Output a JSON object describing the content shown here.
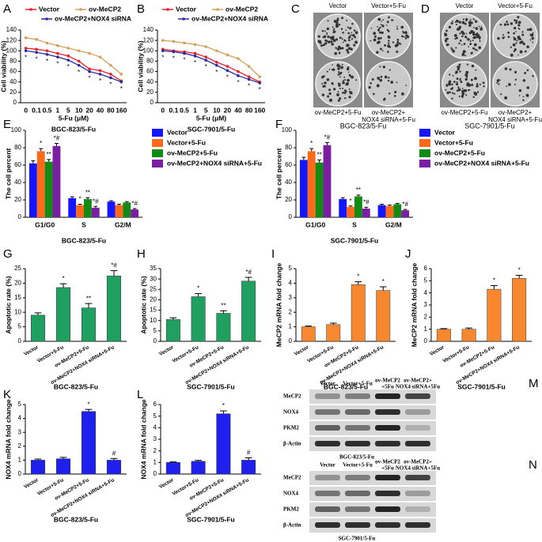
{
  "chart_data": [
    {
      "type": "line",
      "panel": "A",
      "subtitle": "BGC-823/5-Fu",
      "x_label": "5-Fu (μM)",
      "y_label": "Cell viability (%)",
      "categories": [
        "0",
        "0.1",
        "0.5",
        "1",
        "5",
        "10",
        "20",
        "40",
        "80",
        "160"
      ],
      "ylim": [
        0,
        140
      ],
      "yticks": [
        0,
        20,
        40,
        60,
        80,
        100,
        120,
        140
      ],
      "series": [
        {
          "name": "Vector",
          "color": "#e8202a",
          "values": [
            105,
            103,
            100,
            95,
            90,
            80,
            65,
            62,
            55,
            42
          ]
        },
        {
          "name": "ov-MeCP2",
          "color": "#d4a05a",
          "values": [
            125,
            122,
            115,
            110,
            105,
            100,
            95,
            88,
            72,
            55
          ]
        },
        {
          "name": "ov-MeCP2+NOX4 siRNA",
          "color": "#2a2aa0",
          "values": [
            100,
            97,
            93,
            88,
            82,
            72,
            60,
            55,
            48,
            40
          ]
        }
      ],
      "significance": [
        "*",
        "*",
        "*",
        "*",
        "*",
        "*",
        "*",
        "*",
        "*",
        "*"
      ]
    },
    {
      "type": "line",
      "panel": "B",
      "subtitle": "SGC-7901/5-Fu",
      "x_label": "5-Fu (μM)",
      "y_label": "Cell viability (%)",
      "categories": [
        "0",
        "0.1",
        "0.5",
        "1",
        "5",
        "10",
        "20",
        "40",
        "80",
        "160"
      ],
      "ylim": [
        0,
        140
      ],
      "yticks": [
        0,
        20,
        40,
        60,
        80,
        100,
        120,
        140
      ],
      "series": [
        {
          "name": "Vector",
          "color": "#e8202a",
          "values": [
            103,
            100,
            98,
            95,
            88,
            78,
            70,
            60,
            50,
            40
          ]
        },
        {
          "name": "ov-MeCP2",
          "color": "#d4a05a",
          "values": [
            120,
            118,
            115,
            112,
            108,
            100,
            92,
            85,
            70,
            50
          ]
        },
        {
          "name": "ov-MeCP2+NOX4 siRNA",
          "color": "#2a2aa0",
          "values": [
            100,
            98,
            95,
            90,
            82,
            72,
            62,
            52,
            45,
            38
          ]
        }
      ],
      "significance": [
        "*",
        "*",
        "*",
        "*",
        "*",
        "*",
        "*",
        "*",
        "*",
        "*"
      ]
    },
    {
      "type": "bar",
      "panel": "E",
      "subtitle": "BGC-823/5-Fu",
      "y_label": "The cell percent",
      "categories": [
        "G1/G0",
        "S",
        "G2/M"
      ],
      "ylim": [
        0,
        100
      ],
      "yticks": [
        0,
        20,
        40,
        60,
        80,
        100
      ],
      "series": [
        {
          "name": "Vector",
          "color": "#1515ff",
          "values": [
            62,
            22,
            18
          ],
          "errors": [
            3,
            1.5,
            1
          ]
        },
        {
          "name": "Vector+5-Fu",
          "color": "#ff6a1a",
          "values": [
            76,
            14,
            14
          ],
          "errors": [
            3,
            1,
            1
          ],
          "labels": [
            "*",
            "*",
            null
          ]
        },
        {
          "name": "ov-MeCP2+5-Fu",
          "color": "#138a13",
          "values": [
            64,
            21,
            17
          ],
          "errors": [
            2.5,
            1.5,
            1
          ],
          "labels": [
            "**",
            "**",
            null
          ]
        },
        {
          "name": "ov-MeCP2+NOX4 siRNA+5-Fu",
          "color": "#7b1fa2",
          "values": [
            82,
            11,
            9
          ],
          "errors": [
            3,
            1.5,
            1
          ],
          "labels": [
            "*#",
            "*#",
            "*#"
          ]
        }
      ]
    },
    {
      "type": "bar",
      "panel": "F",
      "subtitle": "SGC-7901/5-Fu",
      "y_label": "The cell percent",
      "categories": [
        "G1/G0",
        "S",
        "G2/M"
      ],
      "ylim": [
        0,
        100
      ],
      "yticks": [
        0,
        20,
        40,
        60,
        80,
        100
      ],
      "series": [
        {
          "name": "Vector",
          "color": "#1515ff",
          "values": [
            66,
            21,
            14
          ],
          "errors": [
            3,
            1.5,
            1
          ]
        },
        {
          "name": "Vector+5-Fu",
          "color": "#ff6a1a",
          "values": [
            76,
            12,
            13
          ],
          "errors": [
            3,
            1,
            1
          ],
          "labels": [
            "*",
            "*",
            null
          ]
        },
        {
          "name": "ov-MeCP2+5-Fu",
          "color": "#138a13",
          "values": [
            63,
            24,
            15
          ],
          "errors": [
            3,
            1.5,
            1
          ],
          "labels": [
            "**",
            "**",
            null
          ]
        },
        {
          "name": "ov-MeCP2+NOX4 siRNA+5-Fu",
          "color": "#7b1fa2",
          "values": [
            83,
            10,
            8
          ],
          "errors": [
            3,
            1.5,
            1
          ],
          "labels": [
            "*#",
            "*#",
            "*#"
          ]
        }
      ]
    },
    {
      "type": "bar",
      "panel": "G",
      "subtitle": "BGC-823/5-Fu",
      "y_label": "Apoptotic rate (%)",
      "categories": [
        "Vector",
        "Vector+5-Fu",
        "ov-MeCP2+5-Fu",
        "ov-MeCP2+NOX4 siRNA+5-Fu"
      ],
      "ylim": [
        0,
        25
      ],
      "yticks": [
        0,
        5,
        10,
        15,
        20,
        25
      ],
      "color": "#20a060",
      "values": [
        9,
        18.5,
        11.5,
        22.5
      ],
      "errors": [
        0.8,
        1.3,
        1.5,
        1.8
      ],
      "labels": [
        null,
        "*",
        "**",
        "*#"
      ]
    },
    {
      "type": "bar",
      "panel": "H",
      "subtitle": "SGC-7901/5-Fu",
      "y_label": "Apoptotic rate (%)",
      "categories": [
        "Vector",
        "Vector+5-Fu",
        "ov-MeCP2+5-Fu",
        "ov-MeCP2+NOX4 siRNA+5-Fu"
      ],
      "ylim": [
        0,
        35
      ],
      "yticks": [
        0,
        5,
        10,
        15,
        20,
        25,
        30,
        35
      ],
      "color": "#20a060",
      "values": [
        10.5,
        21.5,
        13.5,
        29
      ],
      "errors": [
        0.8,
        1.5,
        1.2,
        1.8
      ],
      "labels": [
        null,
        "*",
        "**",
        "*#"
      ]
    },
    {
      "type": "bar",
      "panel": "I",
      "subtitle": "BGC-823/5-Fu",
      "y_label": "MeCP2 mRNA fold change",
      "categories": [
        "Vector",
        "Vector+5-Fu",
        "ov-MeCP2+5-Fu",
        "ov-MeCP2+NOX4 siRNA+5-Fu"
      ],
      "ylim": [
        0,
        5
      ],
      "yticks": [
        0,
        1,
        2,
        3,
        4,
        5
      ],
      "color": "#f7882f",
      "values": [
        1,
        1.15,
        3.9,
        3.5
      ],
      "errors": [
        0.05,
        0.1,
        0.2,
        0.25
      ],
      "labels": [
        null,
        null,
        "*",
        "*"
      ]
    },
    {
      "type": "bar",
      "panel": "J",
      "subtitle": "SGC-7901/5-Fu",
      "y_label": "MeCP2 mRNA fold change",
      "categories": [
        "Vector",
        "Vector+5-Fu",
        "ov-MeCP2+5-Fu",
        "ov-MeCP2+NOX4 siRNA+5-Fu"
      ],
      "ylim": [
        0,
        6
      ],
      "yticks": [
        0,
        1,
        2,
        3,
        4,
        5,
        6
      ],
      "color": "#f7882f",
      "values": [
        1,
        1,
        4.3,
        5.2
      ],
      "errors": [
        0.05,
        0.1,
        0.3,
        0.25
      ],
      "labels": [
        null,
        null,
        "*",
        "*"
      ]
    },
    {
      "type": "bar",
      "panel": "K",
      "subtitle": "BGC-823/5-Fu",
      "y_label": "NOX4 mRNA fold change",
      "categories": [
        "Vector",
        "Vector+5-Fu",
        "ov-MeCP2+5-Fu",
        "ov-MeCP2+NOX4 siRNA+5-Fu"
      ],
      "ylim": [
        0,
        5
      ],
      "yticks": [
        0,
        1,
        2,
        3,
        4,
        5
      ],
      "color": "#2020ee",
      "values": [
        1,
        1.1,
        4.5,
        1
      ],
      "errors": [
        0.08,
        0.1,
        0.15,
        0.12
      ],
      "labels": [
        null,
        null,
        "*",
        "#"
      ]
    },
    {
      "type": "bar",
      "panel": "L",
      "subtitle": "SGC-7901/5-Fu",
      "y_label": "NOX4 mRNA fold change",
      "categories": [
        "Vector",
        "Vector+5-Fu",
        "ov-MeCP2+5-Fu",
        "ov-MeCP2+NOX4 siRNA+5-Fu"
      ],
      "ylim": [
        0,
        6
      ],
      "yticks": [
        0,
        1,
        2,
        3,
        4,
        5,
        6
      ],
      "color": "#2020ee",
      "values": [
        1,
        1.1,
        5.2,
        1.2
      ],
      "errors": [
        0.05,
        0.08,
        0.25,
        0.2
      ],
      "labels": [
        null,
        null,
        "*",
        "#"
      ]
    }
  ],
  "images": [
    {
      "panel": "C",
      "top_labels": [
        "Vector",
        "Vector+5-Fu"
      ],
      "bottom_labels": [
        [
          "ov-MeCP2+5-Fu"
        ],
        [
          "ov-MeCP2+",
          "NOX4 siRNA+5-Fu"
        ]
      ],
      "caption": "BGC-823/5-Fu"
    },
    {
      "panel": "D",
      "top_labels": [
        "Vector",
        "Vector+5-Fu"
      ],
      "bottom_labels": [
        [
          "ov-MeCP2+5-Fu"
        ],
        [
          "ov-MeCP2+",
          "NOX4 siRNA+5-Fu"
        ]
      ],
      "caption": "SGC-7901/5-Fu"
    }
  ],
  "blots": [
    {
      "panel": "M",
      "lanes": [
        [
          "Vector"
        ],
        [
          "Vector+5-Fu"
        ],
        [
          "ov-MeCP2",
          "+5Fu"
        ],
        [
          "ov-MeCP2+",
          "NOX4 siRNA+5Fu"
        ]
      ],
      "rows": [
        "MeCP2",
        "NOX4",
        "PKM2",
        "β-Actin"
      ],
      "caption": "BGC-823/5-Fu"
    },
    {
      "panel": "N",
      "lanes": [
        [
          "Vector"
        ],
        [
          "Vector+5-Fu"
        ],
        [
          "ov-MeCP2",
          "+5Fu"
        ],
        [
          "ov-MeCP2+",
          "NOX4 siRNA+5Fu"
        ]
      ],
      "rows": [
        "MeCP2",
        "NOX4",
        "PKM2",
        "β-Actin"
      ],
      "caption": "SGC-7901/5-Fu"
    }
  ]
}
